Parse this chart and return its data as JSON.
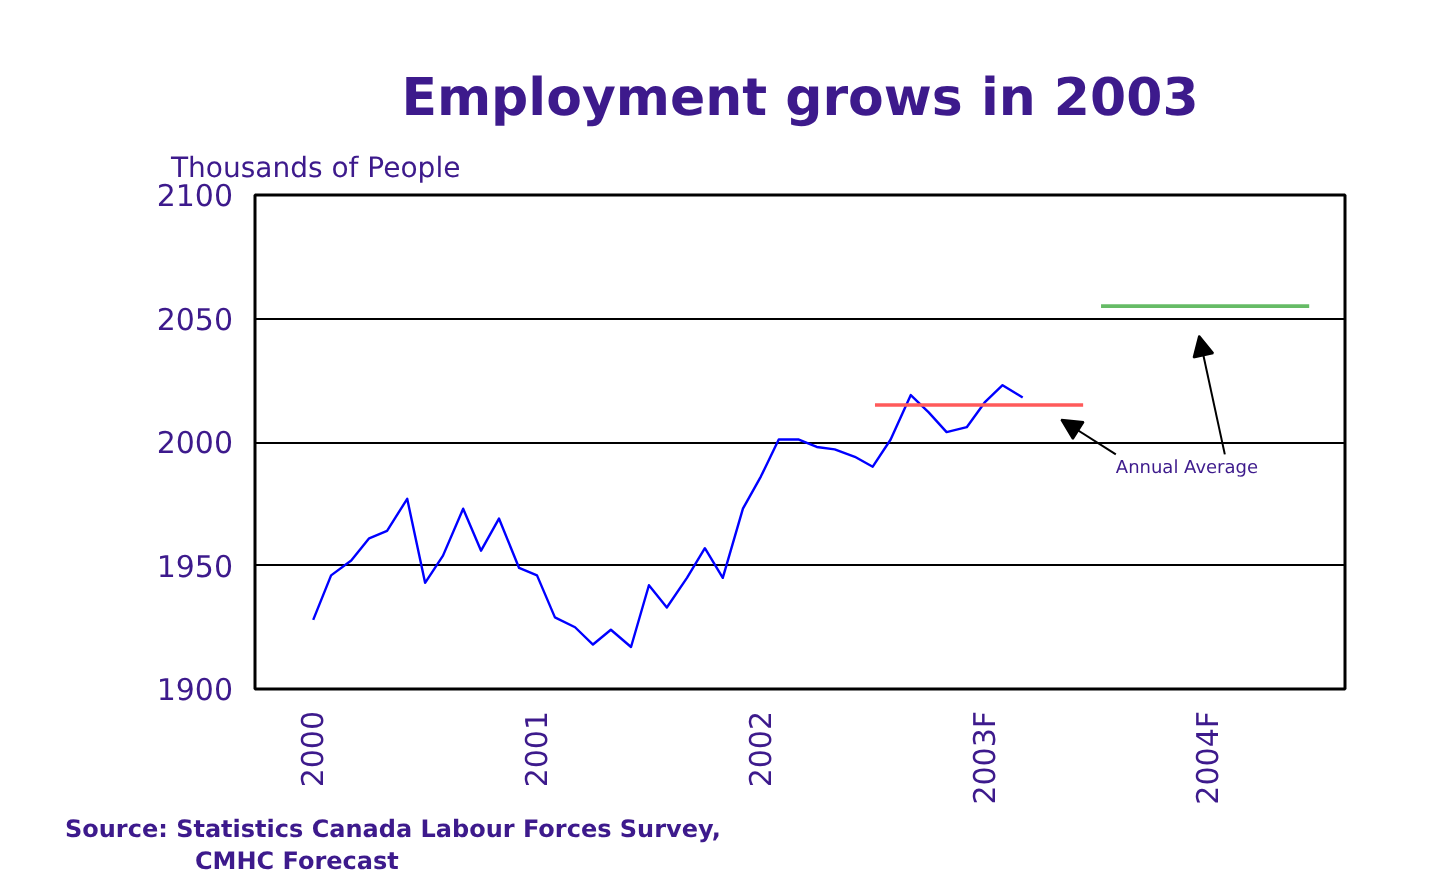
{
  "chart_data": {
    "type": "line",
    "title": "Employment grows in 2003",
    "ylabel": "Thousands of People",
    "x": [
      2000,
      2000.08,
      2000.17,
      2000.25,
      2000.33,
      2000.42,
      2000.5,
      2000.58,
      2000.67,
      2000.75,
      2000.83,
      2000.92,
      2001,
      2001.08,
      2001.17,
      2001.25,
      2001.33,
      2001.42,
      2001.5,
      2001.58,
      2001.67,
      2001.75,
      2001.83,
      2001.92,
      2002,
      2002.08,
      2002.17,
      2002.25,
      2002.33,
      2002.42,
      2002.5,
      2002.58,
      2002.67,
      2002.75,
      2002.83,
      2002.92,
      2003,
      2003.08,
      2003.17
    ],
    "series": [
      {
        "color": "#0000ff",
        "values": [
          1928,
          1946,
          1952,
          1961,
          1964,
          1977,
          1943,
          1954,
          1973,
          1956,
          1969,
          1949,
          1946,
          1929,
          1925,
          1918,
          1924,
          1917,
          1942,
          1933,
          1945,
          1957,
          1945,
          1973,
          1986,
          2001,
          2001,
          1998,
          1997,
          1994,
          1990,
          2001,
          2019,
          2012,
          2004,
          2006,
          2016,
          2023,
          2018
        ]
      },
      {
        "color": "#ff5a5a",
        "x": [
          2002.51,
          2003.44
        ],
        "values": [
          2015,
          2015
        ]
      },
      {
        "color": "#66bb66",
        "x": [
          2003.52,
          2004.45
        ],
        "values": [
          2055,
          2055
        ]
      }
    ],
    "xlim": [
      1999.74,
      2004.61
    ],
    "ylim": [
      1900,
      2100
    ],
    "yticks": [
      1900,
      1950,
      2000,
      2050,
      2100
    ],
    "xticks": [
      2000,
      2001,
      2002,
      {
        "value": 2003,
        "label": "2003F"
      },
      {
        "value": 2004,
        "label": "2004F"
      }
    ],
    "grid": "y",
    "annotations": [
      "Annual Average",
      "Source: Statistics Canada Labour Forces Survey,\nCMHC Forecast"
    ]
  }
}
